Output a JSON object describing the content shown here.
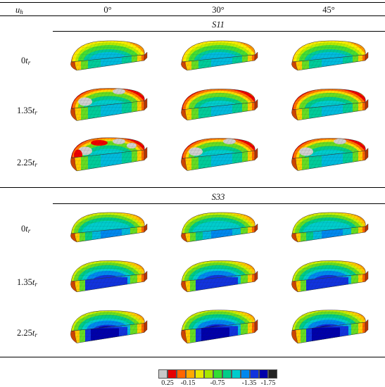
{
  "header": {
    "col0": "u",
    "col0_sub": "h",
    "cols": [
      "0°",
      "30°",
      "45°"
    ]
  },
  "sections": [
    {
      "label": "S11",
      "rows": [
        {
          "pre": "0",
          "sub": "r",
          "levels": [
            0,
            0,
            0
          ]
        },
        {
          "pre": "1.35",
          "sub": "r",
          "levels": [
            2,
            1,
            1
          ]
        },
        {
          "pre": "2.25",
          "sub": "r",
          "levels": [
            3,
            2,
            2
          ]
        }
      ]
    },
    {
      "label": "S33",
      "rows": [
        {
          "pre": "0",
          "sub": "r",
          "levels": [
            0,
            0,
            0
          ]
        },
        {
          "pre": "1.35",
          "sub": "r",
          "levels": [
            1,
            1,
            1
          ]
        },
        {
          "pre": "2.25",
          "sub": "r",
          "levels": [
            2,
            3,
            3
          ]
        }
      ]
    }
  ],
  "colorbar": {
    "colors": [
      "#c8c8c8",
      "#e60000",
      "#ff6600",
      "#ffaa00",
      "#e8e800",
      "#a8e600",
      "#33dd33",
      "#00cc88",
      "#00cccc",
      "#0088ee",
      "#1133dd",
      "#0000aa",
      "#222222"
    ],
    "labels": [
      "0.25",
      "-0.15",
      "-0.75",
      "-1.35",
      "-1.75"
    ]
  }
}
